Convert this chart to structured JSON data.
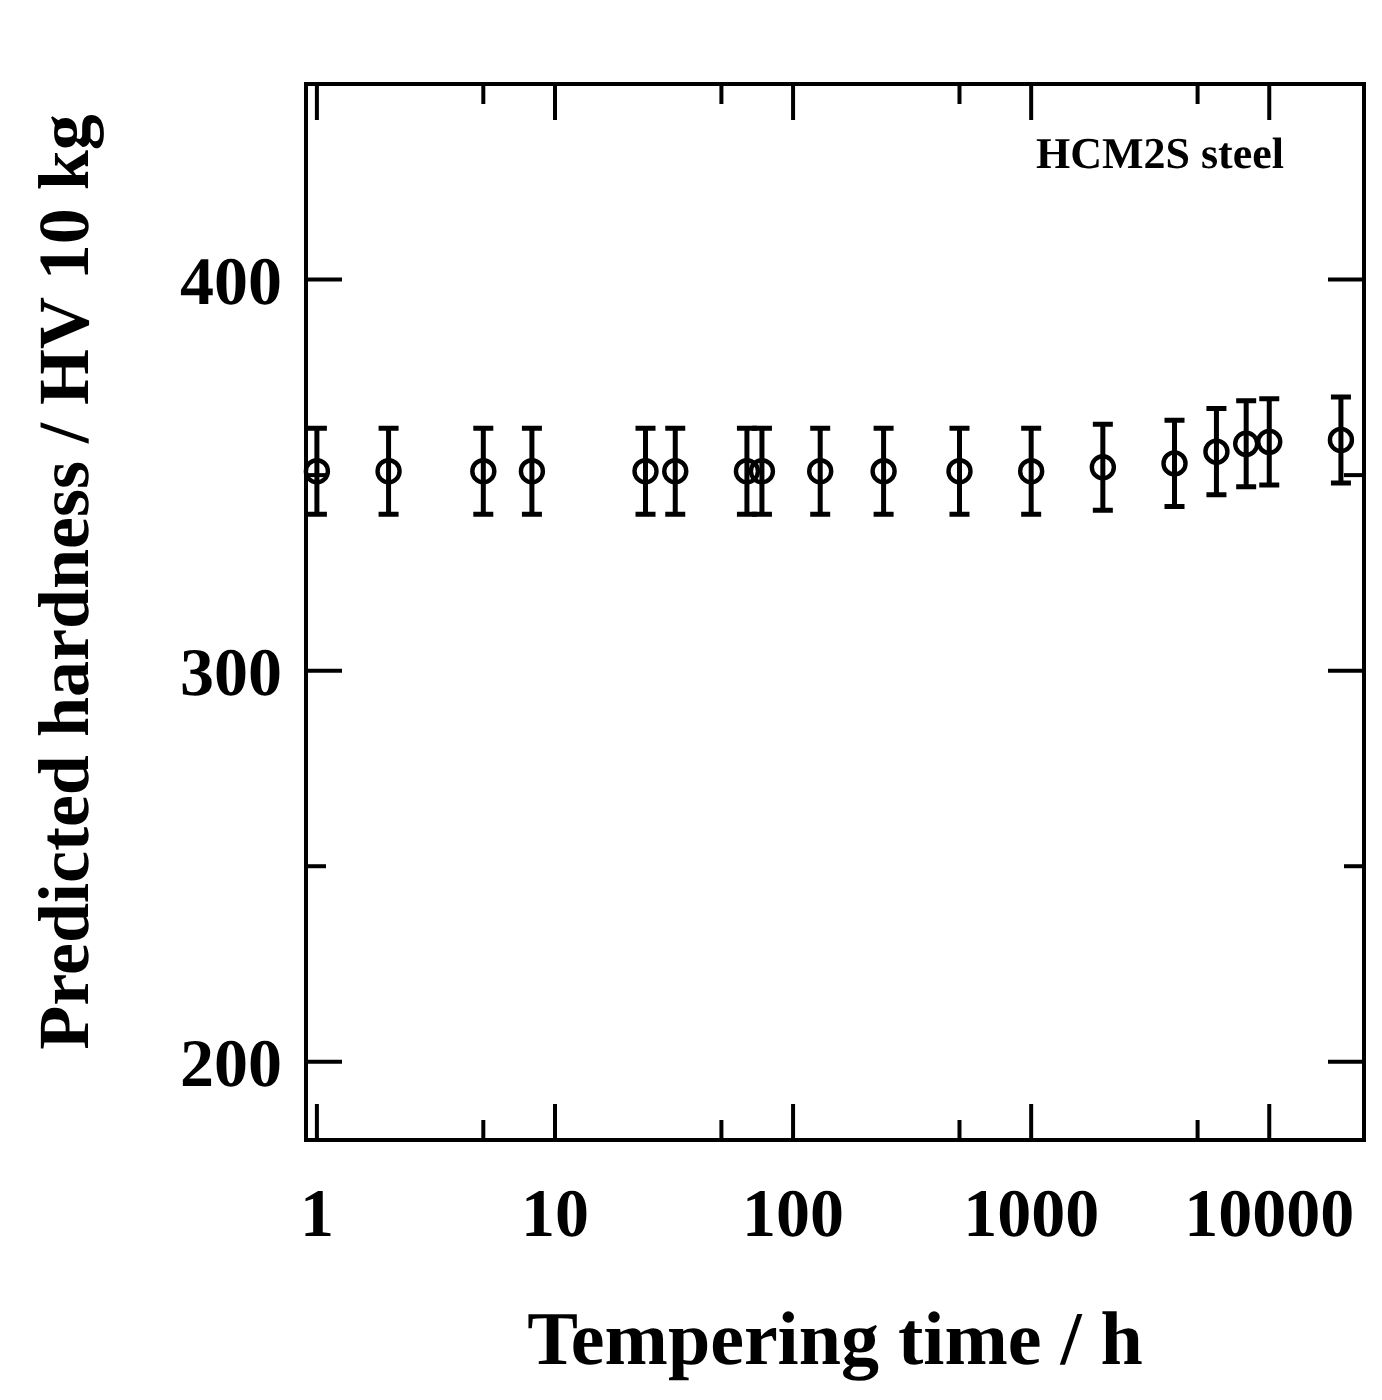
{
  "chart_data": {
    "type": "scatter",
    "xlabel": "Tempering time / h",
    "ylabel": "Predicted hardness / HV 10 kg",
    "annotations": [
      "HCM2S steel"
    ],
    "log": "x",
    "marker": "circle",
    "grid": false,
    "x": [
      1,
      2,
      5,
      8,
      24,
      32,
      64,
      74,
      130,
      240,
      500,
      1000,
      2000,
      4000,
      6000,
      8000,
      10000,
      20000
    ],
    "series": [
      {
        "color": "#000000",
        "values": [
          351,
          351,
          351,
          351,
          351,
          351,
          351,
          351,
          351,
          351,
          351,
          351,
          352,
          353,
          356,
          358,
          358.5,
          359
        ],
        "errors": [
          11,
          11,
          11,
          11,
          11,
          11,
          11,
          11,
          11,
          11,
          11,
          11,
          11,
          11,
          11,
          11,
          11,
          11
        ]
      }
    ],
    "xlim": [
      0.9,
      25000
    ],
    "xticks": [
      1,
      {
        "value": 5,
        "label": null
      },
      10,
      {
        "value": 50,
        "label": null
      },
      100,
      {
        "value": 500,
        "label": null
      },
      1000,
      {
        "value": 5000,
        "label": null
      },
      10000
    ],
    "ylim": [
      180,
      450
    ],
    "yticks": [
      {
        "value": 200,
        "label": "200"
      },
      {
        "value": 250,
        "label": null
      },
      {
        "value": 300,
        "label": "300"
      },
      {
        "value": 350,
        "label": null
      },
      {
        "value": 400,
        "label": "400"
      }
    ]
  }
}
